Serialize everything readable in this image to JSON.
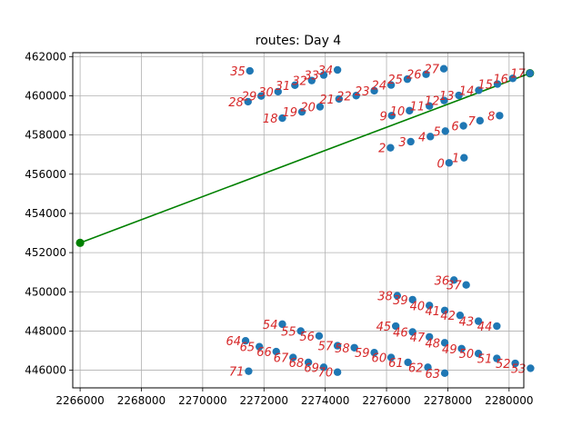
{
  "chart_data": {
    "type": "scatter",
    "title": "routes: Day 4",
    "xlabel": "",
    "ylabel": "",
    "xlim": [
      2265760,
      2280480
    ],
    "ylim": [
      445100,
      462200
    ],
    "xticks": [
      2266000,
      2268000,
      2270000,
      2272000,
      2274000,
      2276000,
      2278000,
      2280000
    ],
    "yticks": [
      446000,
      448000,
      450000,
      452000,
      454000,
      456000,
      458000,
      460000,
      462000
    ],
    "grid": true,
    "colors": {
      "points": "#1f77b4",
      "labels": "#d62728",
      "route": "#008000"
    },
    "points": [
      {
        "label": "0",
        "x": 2278040,
        "y": 456580
      },
      {
        "label": "1",
        "x": 2278530,
        "y": 456840
      },
      {
        "label": "2",
        "x": 2276130,
        "y": 457350
      },
      {
        "label": "3",
        "x": 2276790,
        "y": 457660
      },
      {
        "label": "4",
        "x": 2277430,
        "y": 457920
      },
      {
        "label": "5",
        "x": 2277920,
        "y": 458200
      },
      {
        "label": "6",
        "x": 2278510,
        "y": 458470
      },
      {
        "label": "7",
        "x": 2279050,
        "y": 458730
      },
      {
        "label": "8",
        "x": 2279690,
        "y": 458990
      },
      {
        "label": "9",
        "x": 2276170,
        "y": 458990
      },
      {
        "label": "10",
        "x": 2276750,
        "y": 459240
      },
      {
        "label": "11",
        "x": 2277400,
        "y": 459480
      },
      {
        "label": "12",
        "x": 2277880,
        "y": 459760
      },
      {
        "label": "13",
        "x": 2278360,
        "y": 460020
      },
      {
        "label": "14",
        "x": 2279010,
        "y": 460280
      },
      {
        "label": "15",
        "x": 2279620,
        "y": 460600
      },
      {
        "label": "16",
        "x": 2280120,
        "y": 460890
      },
      {
        "label": "17",
        "x": 2280680,
        "y": 461150
      },
      {
        "label": "18",
        "x": 2272600,
        "y": 458860
      },
      {
        "label": "19",
        "x": 2273240,
        "y": 459180
      },
      {
        "label": "20",
        "x": 2273830,
        "y": 459440
      },
      {
        "label": "21",
        "x": 2274450,
        "y": 459840
      },
      {
        "label": "22",
        "x": 2275010,
        "y": 460010
      },
      {
        "label": "23",
        "x": 2275600,
        "y": 460260
      },
      {
        "label": "24",
        "x": 2276150,
        "y": 460550
      },
      {
        "label": "25",
        "x": 2276680,
        "y": 460850
      },
      {
        "label": "26",
        "x": 2277290,
        "y": 461100
      },
      {
        "label": "27",
        "x": 2277870,
        "y": 461380
      },
      {
        "label": "28",
        "x": 2271480,
        "y": 459700
      },
      {
        "label": "29",
        "x": 2271910,
        "y": 459990
      },
      {
        "label": "30",
        "x": 2272460,
        "y": 460210
      },
      {
        "label": "31",
        "x": 2273010,
        "y": 460540
      },
      {
        "label": "32",
        "x": 2273560,
        "y": 460780
      },
      {
        "label": "33",
        "x": 2273950,
        "y": 461060
      },
      {
        "label": "34",
        "x": 2274400,
        "y": 461320
      },
      {
        "label": "35",
        "x": 2271540,
        "y": 461270
      },
      {
        "label": "36",
        "x": 2278200,
        "y": 450600
      },
      {
        "label": "37",
        "x": 2278600,
        "y": 450350
      },
      {
        "label": "38",
        "x": 2276350,
        "y": 449800
      },
      {
        "label": "39",
        "x": 2276850,
        "y": 449600
      },
      {
        "label": "40",
        "x": 2277400,
        "y": 449300
      },
      {
        "label": "41",
        "x": 2277900,
        "y": 449050
      },
      {
        "label": "42",
        "x": 2278400,
        "y": 448800
      },
      {
        "label": "43",
        "x": 2279000,
        "y": 448500
      },
      {
        "label": "44",
        "x": 2279600,
        "y": 448250
      },
      {
        "label": "45",
        "x": 2276300,
        "y": 448250
      },
      {
        "label": "46",
        "x": 2276850,
        "y": 447950
      },
      {
        "label": "47",
        "x": 2277400,
        "y": 447700
      },
      {
        "label": "48",
        "x": 2277900,
        "y": 447400
      },
      {
        "label": "49",
        "x": 2278450,
        "y": 447100
      },
      {
        "label": "50",
        "x": 2279000,
        "y": 446850
      },
      {
        "label": "51",
        "x": 2279600,
        "y": 446600
      },
      {
        "label": "52",
        "x": 2280200,
        "y": 446350
      },
      {
        "label": "53",
        "x": 2280700,
        "y": 446100
      },
      {
        "label": "54",
        "x": 2272600,
        "y": 448350
      },
      {
        "label": "55",
        "x": 2273200,
        "y": 448000
      },
      {
        "label": "56",
        "x": 2273800,
        "y": 447750
      },
      {
        "label": "57",
        "x": 2274400,
        "y": 447250
      },
      {
        "label": "58",
        "x": 2274950,
        "y": 447150
      },
      {
        "label": "59",
        "x": 2275600,
        "y": 446900
      },
      {
        "label": "60",
        "x": 2276150,
        "y": 446650
      },
      {
        "label": "61",
        "x": 2276700,
        "y": 446400
      },
      {
        "label": "62",
        "x": 2277350,
        "y": 446150
      },
      {
        "label": "63",
        "x": 2277900,
        "y": 445850
      },
      {
        "label": "64",
        "x": 2271400,
        "y": 447500
      },
      {
        "label": "65",
        "x": 2271850,
        "y": 447200
      },
      {
        "label": "66",
        "x": 2272400,
        "y": 446950
      },
      {
        "label": "67",
        "x": 2272950,
        "y": 446650
      },
      {
        "label": "68",
        "x": 2273450,
        "y": 446400
      },
      {
        "label": "69",
        "x": 2273950,
        "y": 446150
      },
      {
        "label": "70",
        "x": 2274400,
        "y": 445900
      },
      {
        "label": "71",
        "x": 2271500,
        "y": 445950
      }
    ],
    "route": [
      {
        "x": 2266000,
        "y": 452500
      },
      {
        "x": 2280680,
        "y": 461150
      }
    ]
  }
}
